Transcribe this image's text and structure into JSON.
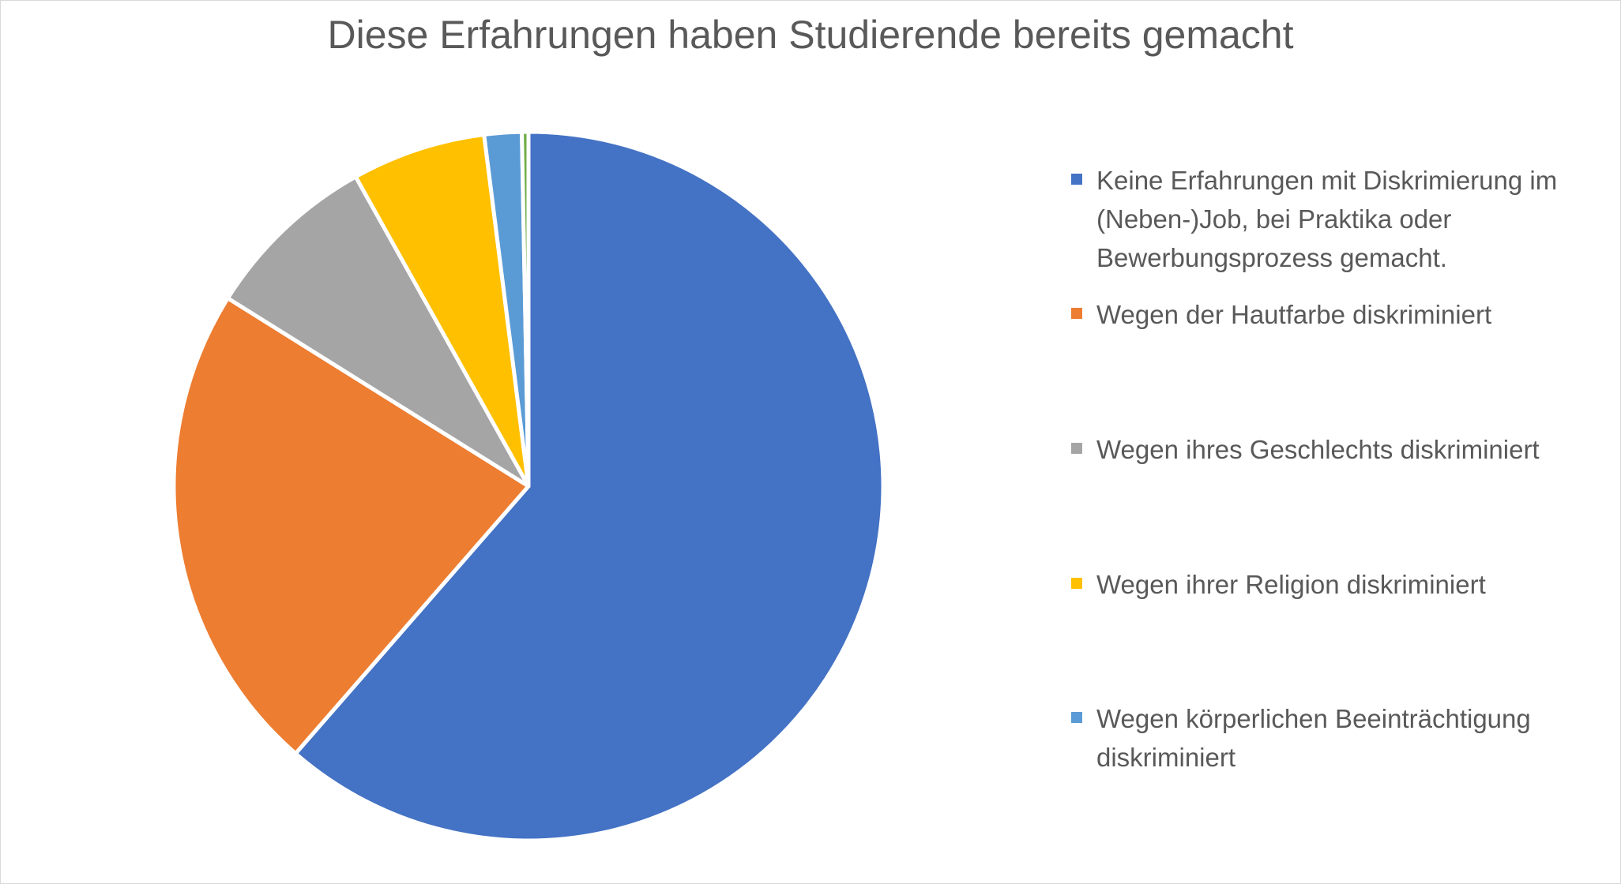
{
  "chart_data": {
    "type": "pie",
    "title": "Diese Erfahrungen haben Studierende bereits gemacht",
    "start": "top",
    "direction": "clockwise",
    "legend_position": "right",
    "slices": [
      {
        "label": "Keine Erfahrungen mit Diskrimierung im (Neben-)Job, bei Praktika oder Bewerbungsprozess gemacht.",
        "value": 61.4,
        "color": "#4472C4"
      },
      {
        "label": "Wegen der Hautfarbe diskriminiert",
        "value": 22.5,
        "color": "#ED7D31"
      },
      {
        "label": "Wegen ihres Geschlechts diskriminiert",
        "value": 8.0,
        "color": "#A5A5A5"
      },
      {
        "label": "Wegen ihrer Religion diskriminiert",
        "value": 6.1,
        "color": "#FFC000"
      },
      {
        "label": "Wegen körperlichen Beeinträchtigung diskriminiert",
        "value": 1.7,
        "color": "#5B9BD5"
      },
      {
        "label": "",
        "value": 0.3,
        "color": "#70AD47"
      }
    ]
  }
}
